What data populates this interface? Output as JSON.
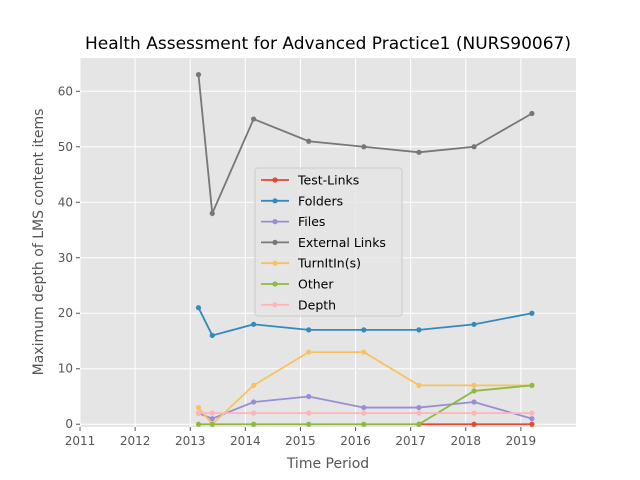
{
  "chart_data": {
    "type": "line",
    "title": "Health Assessment for Advanced Practice1 (NURS90067)",
    "xlabel": "Time Period",
    "ylabel": "Maximum depth of LMS content items",
    "xlim": [
      2011.0,
      2020.0
    ],
    "ylim": [
      -0.5,
      66.0
    ],
    "x_ticks": [
      2011,
      2012,
      2013,
      2014,
      2015,
      2016,
      2017,
      2018,
      2019
    ],
    "y_ticks": [
      0,
      10,
      20,
      30,
      40,
      50,
      60
    ],
    "grid": true,
    "legend_position": "center",
    "x": [
      2013.15,
      2013.4,
      2014.15,
      2015.15,
      2016.15,
      2017.15,
      2018.15,
      2019.2
    ],
    "series": [
      {
        "name": "Test-Links",
        "color": "#E24A33",
        "values": [
          null,
          null,
          null,
          null,
          null,
          0,
          0,
          0
        ]
      },
      {
        "name": "Folders",
        "color": "#348ABD",
        "values": [
          21,
          16,
          18,
          17,
          17,
          17,
          18,
          20
        ]
      },
      {
        "name": "Files",
        "color": "#988ED5",
        "values": [
          2,
          1,
          4,
          5,
          3,
          3,
          4,
          1
        ]
      },
      {
        "name": "External Links",
        "color": "#777777",
        "values": [
          63,
          38,
          55,
          51,
          50,
          49,
          50,
          56
        ]
      },
      {
        "name": "TurnItIn(s)",
        "color": "#FBC15E",
        "values": [
          3,
          0,
          7,
          13,
          13,
          7,
          7,
          7
        ]
      },
      {
        "name": "Other",
        "color": "#8EBA42",
        "values": [
          0,
          0,
          0,
          0,
          0,
          0,
          6,
          7
        ]
      },
      {
        "name": "Depth",
        "color": "#FFB5B8",
        "values": [
          2,
          2,
          2,
          2,
          2,
          2,
          2,
          2
        ]
      }
    ]
  }
}
